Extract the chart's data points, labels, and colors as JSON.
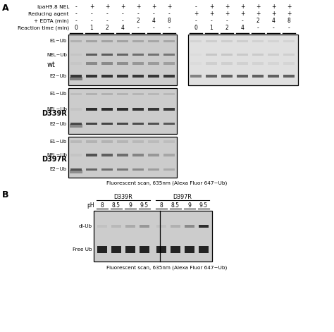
{
  "fig_width": 4.74,
  "fig_height": 4.71,
  "bg_color": "#ffffff",
  "header_rows": [
    {
      "label": "IpaH9.8 NEL",
      "values": [
        "-",
        "+",
        "+",
        "+",
        "+",
        "+",
        "+",
        "-",
        "+",
        "+",
        "+",
        "+",
        "+",
        "+"
      ]
    },
    {
      "label": "Reducing agent",
      "values": [
        "-",
        "-",
        "-",
        "-",
        "-",
        "-",
        "-",
        "+",
        "+",
        "+",
        "+",
        "+",
        "+",
        "+"
      ]
    },
    {
      "label": "+ EDTA (min)",
      "values": [
        "-",
        "-",
        "-",
        "-",
        "2",
        "4",
        "8",
        "-",
        "-",
        "-",
        "-",
        "2",
        "4",
        "8"
      ]
    },
    {
      "label": "Reaction time (min)",
      "values": [
        "0",
        "1",
        "2",
        "4",
        "-",
        "-",
        "-",
        "0",
        "1",
        "2",
        "4",
        "-",
        "-",
        "-"
      ]
    }
  ],
  "footer_A": "Fluorescent scan, 635nm (Alexa Fluor 647~Ub)",
  "footer_B": "Fluorescent scan, 635nm (Alexa Fluor 647~Ub)",
  "panel_B_header": {
    "d339r_label": "D339R",
    "d397r_label": "D397R",
    "d339r_ph": [
      "8",
      "8.5",
      "9",
      "9.5"
    ],
    "d397r_ph": [
      "8",
      "8.5",
      "9",
      "9.5"
    ]
  },
  "gel_bg_left": "#d8d8d8",
  "gel_bg_right": "#e8e8e8"
}
